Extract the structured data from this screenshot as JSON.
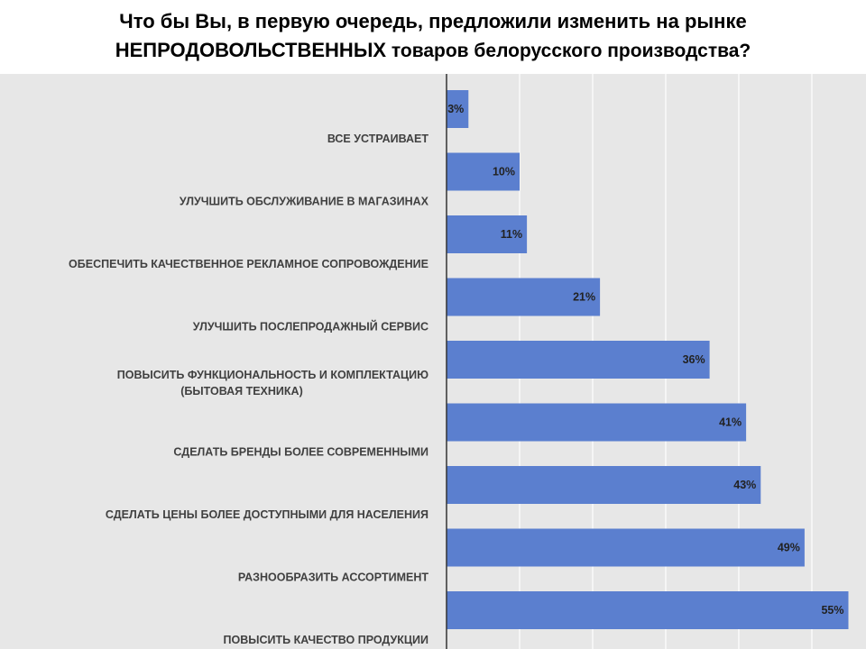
{
  "title": {
    "line1": "Что бы Вы, в первую очередь, предложили изменить на рынке",
    "line2_caps": "НЕПРОДОВОЛЬСТВЕННЫХ",
    "line2_rest": " товаров белорусского производства?"
  },
  "colors": {
    "bar": "#5b7fcf",
    "background": "#e7e7e7",
    "grid": "#ffffff",
    "axis": "#333333"
  },
  "chart_data": {
    "type": "bar",
    "orientation": "horizontal",
    "categories": [
      [
        "ВСЕ УСТРАИВАЕТ"
      ],
      [
        "УЛУЧШИТЬ ОБСЛУЖИВАНИЕ В МАГАЗИНАХ"
      ],
      [
        "ОБЕСПЕЧИТЬ КАЧЕСТВЕННОЕ РЕКЛАМНОЕ СОПРОВОЖДЕНИЕ"
      ],
      [
        "УЛУЧШИТЬ ПОСЛЕПРОДАЖНЫЙ СЕРВИС"
      ],
      [
        "ПОВЫСИТЬ ФУНКЦИОНАЛЬНОСТЬ И КОМПЛЕКТАЦИЮ",
        "(БЫТОВАЯ ТЕХНИКА)"
      ],
      [
        "СДЕЛАТЬ БРЕНДЫ БОЛЕЕ СОВРЕМЕННЫМИ"
      ],
      [
        "СДЕЛАТЬ ЦЕНЫ БОЛЕЕ ДОСТУПНЫМИ ДЛЯ НАСЕЛЕНИЯ"
      ],
      [
        "РАЗНООБРАЗИТЬ АССОРТИМЕНТ"
      ],
      [
        "ПОВЫСИТЬ КАЧЕСТВО ПРОДУКЦИИ"
      ]
    ],
    "values": [
      3,
      10,
      11,
      21,
      36,
      41,
      43,
      49,
      55
    ],
    "value_labels": [
      "3%",
      "10%",
      "11%",
      "21%",
      "36%",
      "41%",
      "43%",
      "49%",
      "55%"
    ],
    "xlim": [
      0,
      60
    ],
    "grid": true
  }
}
